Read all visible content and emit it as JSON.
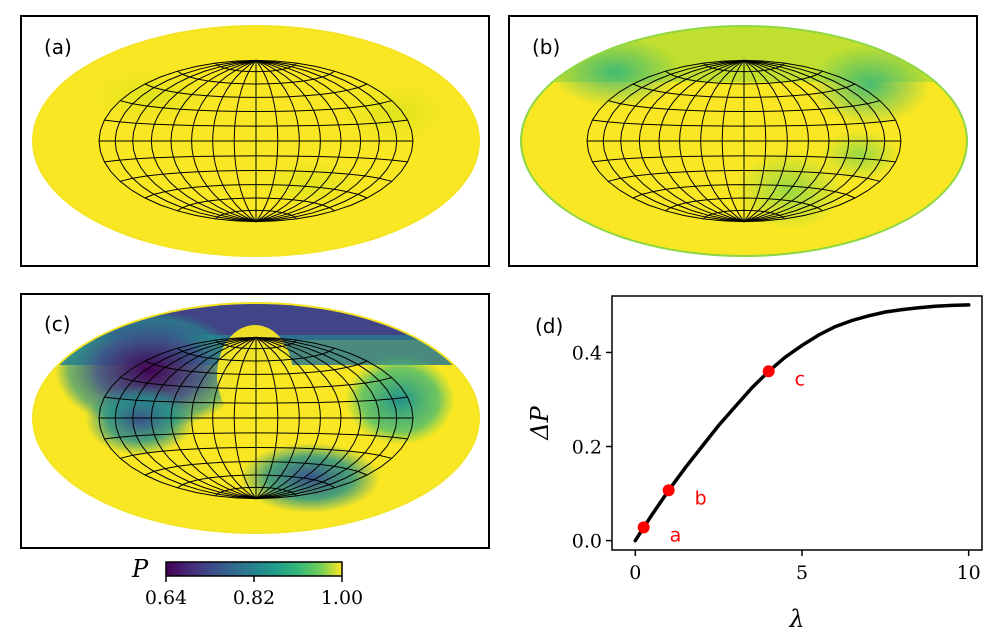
{
  "chart_data": [
    {
      "type": "heatmap",
      "label": "(a)",
      "projection": "hammer-aitoff sphere map",
      "color_variable": "P",
      "lambda_point": "a"
    },
    {
      "type": "heatmap",
      "label": "(b)",
      "projection": "hammer-aitoff sphere map",
      "color_variable": "P",
      "lambda_point": "b"
    },
    {
      "type": "heatmap",
      "label": "(c)",
      "projection": "hammer-aitoff sphere map",
      "color_variable": "P",
      "lambda_point": "c"
    },
    {
      "type": "line",
      "label": "(d)",
      "xlabel": "λ",
      "ylabel": "ΔP",
      "xlim": [
        -0.7,
        10.4
      ],
      "ylim": [
        -0.02,
        0.52
      ],
      "xticks": [
        0,
        5,
        10
      ],
      "xtick_labels": [
        "0",
        "5",
        "10"
      ],
      "yticks": [
        0.0,
        0.2,
        0.4
      ],
      "ytick_labels": [
        "0.0",
        "0.2",
        "0.4"
      ],
      "series": [
        {
          "name": "ΔP(λ)",
          "x": [
            0,
            0.25,
            0.5,
            1,
            1.5,
            2,
            2.5,
            3,
            3.5,
            4,
            4.5,
            5,
            5.5,
            6,
            6.5,
            7,
            7.5,
            8,
            8.5,
            9,
            9.5,
            10
          ],
          "y": [
            0.0,
            0.028,
            0.055,
            0.107,
            0.155,
            0.2,
            0.245,
            0.285,
            0.325,
            0.36,
            0.39,
            0.415,
            0.437,
            0.455,
            0.468,
            0.478,
            0.486,
            0.491,
            0.495,
            0.498,
            0.5,
            0.501
          ]
        }
      ],
      "highlighted_points": [
        {
          "name": "a",
          "x": 0.25,
          "y": 0.028
        },
        {
          "name": "b",
          "x": 1.0,
          "y": 0.107
        },
        {
          "name": "c",
          "x": 4.0,
          "y": 0.36
        }
      ],
      "highlight_color": "#ff0000"
    }
  ],
  "colorbar": {
    "title": "P",
    "min": 0.64,
    "max": 1.0,
    "ticks": [
      0.64,
      0.82,
      1.0
    ],
    "tick_labels": [
      "0.64",
      "0.82",
      "1.00"
    ],
    "colormap": "viridis"
  }
}
